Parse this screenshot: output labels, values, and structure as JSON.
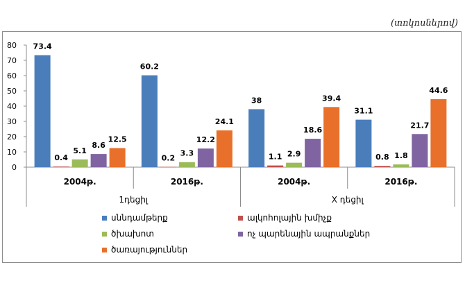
{
  "unit_note": "(տոկոսներով)",
  "chart_data": {
    "type": "bar",
    "groups": [
      {
        "name": "1դեցիլ",
        "categories": [
          "2004թ.",
          "2016թ."
        ]
      },
      {
        "name": "X դեցիլ",
        "categories": [
          "2004թ.",
          "2016թ."
        ]
      }
    ],
    "categories": [
      "2004թ.",
      "2016թ.",
      "2004թ.",
      "2016թ."
    ],
    "series": [
      {
        "name": "սննդամթերք",
        "color": "#4a7ebb",
        "values": [
          73.4,
          60.2,
          38,
          31.1
        ]
      },
      {
        "name": "ալկոհոլային խմիչք",
        "color": "#c0504d",
        "values": [
          0.4,
          0.2,
          1.1,
          0.8
        ]
      },
      {
        "name": "ծխախոտ",
        "color": "#9bbb59",
        "values": [
          5.1,
          3.3,
          2.9,
          1.8
        ]
      },
      {
        "name": "ոչ պարենային ապրանքներ",
        "color": "#8064a2",
        "values": [
          8.6,
          12.2,
          18.6,
          21.7
        ]
      },
      {
        "name": "ծառայություններ",
        "color": "#e8702a",
        "values": [
          12.5,
          24.1,
          39.4,
          44.6
        ]
      }
    ],
    "ylim": [
      0,
      80
    ],
    "yticks": [
      0,
      10,
      20,
      30,
      40,
      50,
      60,
      70,
      80
    ],
    "grid": false,
    "legend_position": "bottom"
  }
}
